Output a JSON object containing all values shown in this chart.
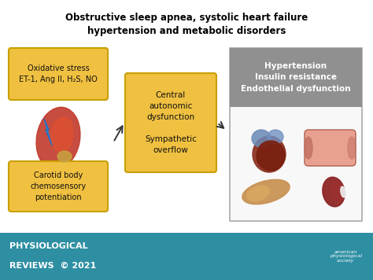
{
  "title_line1": "Obstructive sleep apnea, systolic heart failure",
  "title_line2": "hypertension and metabolic disorders",
  "title_fontsize": 8.5,
  "title_fontweight": "bold",
  "background_color": "#ffffff",
  "footer_bg_color": "#2e8fa3",
  "footer_text_line1": "PHYSIOLOGICAL",
  "footer_text_line2": "REVIEWS  © 2021",
  "footer_fontsize": 7.5,
  "box_yellow": "#f0c040",
  "box_yellow_border": "#c8a000",
  "box1_text": "Oxidative stress\nET-1, Ang II, H₂S, NO",
  "box2_text": "Central\nautonomic\ndysfunction\n\nSympathetic\noverflow",
  "box3_header_text": "Hypertension\nInsulin resistance\nEndothelial dysfunction",
  "box4_text": "Carotid body\nchemosensory\npotentiation",
  "arrow_color": "#333333",
  "text_dark": "#111111",
  "box3_header_bg": "#909090",
  "box3_border": "#aaaaaa",
  "box3_bg": "#f8f8f8"
}
